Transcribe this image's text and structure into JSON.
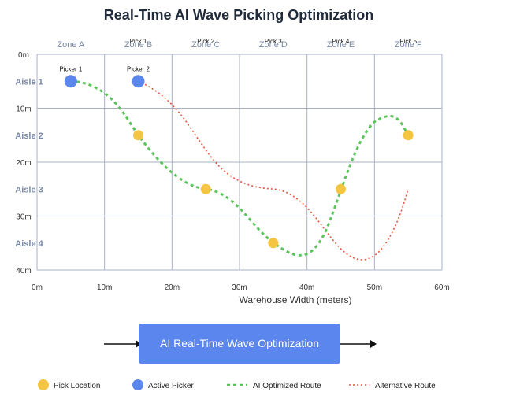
{
  "title": "Real-Time AI Wave Picking Optimization",
  "zones": [
    "Zone A",
    "Zone B",
    "Zone C",
    "Zone D",
    "Zone E",
    "Zone F"
  ],
  "aisles": [
    "Aisle 1",
    "Aisle 2",
    "Aisle 3",
    "Aisle 4"
  ],
  "x_ticks": [
    "0m",
    "10m",
    "20m",
    "30m",
    "40m",
    "50m",
    "60m"
  ],
  "y_ticks": [
    "0m",
    "10m",
    "20m",
    "30m",
    "40m"
  ],
  "x_axis_title": "Warehouse Width (meters)",
  "pick_labels": [
    "Pick 1",
    "Pick 2",
    "Pick 3",
    "Pick 4",
    "Pick 5"
  ],
  "pickers": [
    {
      "label": "Picker 1",
      "x": 5,
      "y": 5
    },
    {
      "label": "Picker 2",
      "x": 15,
      "y": 5
    }
  ],
  "picks": [
    {
      "x": 15,
      "y": 15
    },
    {
      "x": 25,
      "y": 25
    },
    {
      "x": 35,
      "y": 35
    },
    {
      "x": 45,
      "y": 25
    },
    {
      "x": 55,
      "y": 15
    }
  ],
  "banner_label": "AI Real-Time Wave Optimization",
  "legend": {
    "pick": "Pick Location",
    "picker": "Active Picker",
    "ai_route": "AI Optimized Route",
    "alt_route": "Alternative Route"
  },
  "colors": {
    "pick": "#f4c542",
    "picker": "#5b86ee",
    "ai_route": "#5cc45c",
    "alt_route": "#e8553f",
    "grid": "#a9b0c6",
    "banner": "#5b86ee"
  }
}
